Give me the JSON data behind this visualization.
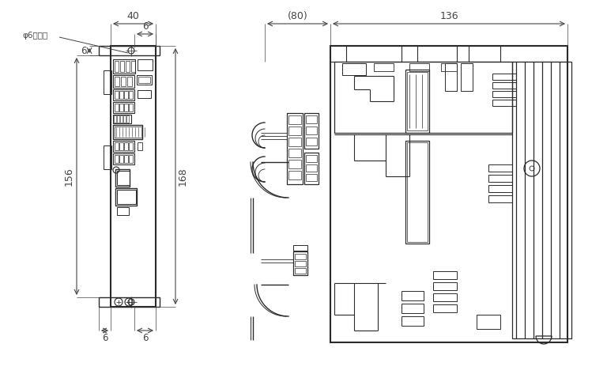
{
  "bg_color": "#ffffff",
  "lc": "#2a2a2a",
  "dc": "#444444",
  "fig_width": 7.68,
  "fig_height": 4.73,
  "dpi": 100
}
